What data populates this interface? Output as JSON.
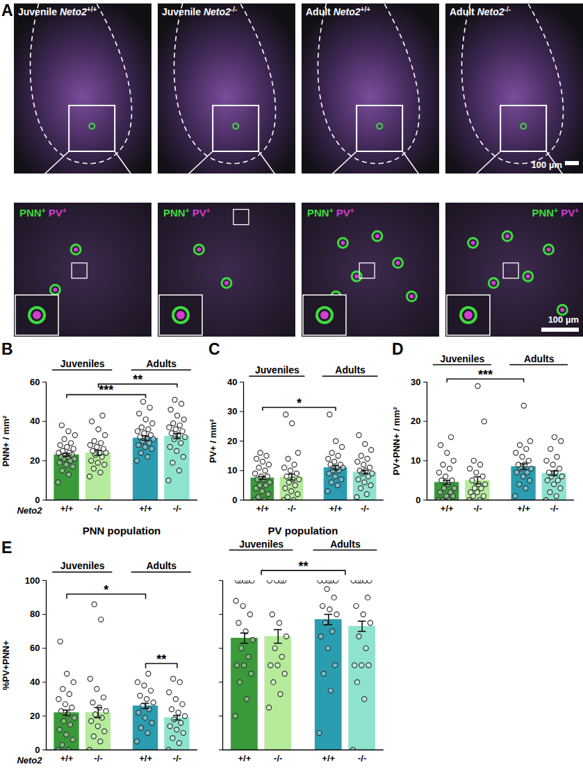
{
  "panel_a": {
    "panel": "A",
    "images": [
      {
        "stage": "Juvenile",
        "gene": "Neto2",
        "genotype": "+/+"
      },
      {
        "stage": "Juvenile",
        "gene": "Neto2",
        "genotype": "-/-"
      },
      {
        "stage": "Adult",
        "gene": "Neto2",
        "genotype": "+/+"
      },
      {
        "stage": "Adult",
        "gene": "Neto2",
        "genotype": "-/-"
      }
    ],
    "stains": [
      {
        "name": "PNN",
        "sign": "+",
        "color": "#3ddc3d"
      },
      {
        "name": "PV",
        "sign": "+",
        "color": "#d23cd2"
      }
    ],
    "scale_bar": "100 µm"
  },
  "chart_data": [
    {
      "panel": "B",
      "type": "bar",
      "ylabel": "PNN+ / mm²",
      "row_label": "Neto2",
      "categories": [
        "+/+",
        "-/-",
        "+/+",
        "-/-"
      ],
      "groups": [
        {
          "label": "Juveniles",
          "members": [
            0,
            1
          ]
        },
        {
          "label": "Adults",
          "members": [
            2,
            3
          ]
        }
      ],
      "values": [
        23,
        24,
        31.5,
        32.5
      ],
      "errors": [
        0.7,
        1.2,
        1.1,
        1.3
      ],
      "points": [
        [
          9,
          13,
          15,
          17,
          18,
          19,
          20,
          21,
          21,
          22,
          22,
          23,
          23,
          24,
          24,
          25,
          26,
          27,
          28,
          29,
          31,
          33,
          35,
          38
        ],
        [
          12,
          14,
          16,
          18,
          19,
          20,
          22,
          23,
          24,
          24,
          25,
          26,
          27,
          28,
          29,
          30,
          33,
          36,
          40,
          43
        ],
        [
          20,
          22,
          24,
          26,
          27,
          28,
          29,
          30,
          31,
          31,
          32,
          33,
          34,
          35,
          36,
          37,
          39,
          41,
          44,
          47,
          50
        ],
        [
          10,
          15,
          19,
          22,
          25,
          27,
          29,
          31,
          32,
          33,
          34,
          35,
          36,
          37,
          38,
          39,
          41,
          43,
          46,
          49,
          51
        ]
      ],
      "colors": [
        "#3a9a3a",
        "#b5eb9b",
        "#2a9db0",
        "#8ee3cf"
      ],
      "ylim": [
        0,
        60
      ],
      "yticks": [
        0,
        20,
        40,
        60
      ],
      "comparisons": [
        {
          "between": [
            0,
            2
          ],
          "label": "***"
        },
        {
          "between": [
            1,
            3
          ],
          "label": "**"
        }
      ]
    },
    {
      "panel": "C",
      "type": "bar",
      "ylabel": "PV+ / mm²",
      "categories": [
        "+/+",
        "-/-",
        "+/+",
        "-/-"
      ],
      "groups": [
        {
          "label": "Juveniles",
          "members": [
            0,
            1
          ]
        },
        {
          "label": "Adults",
          "members": [
            2,
            3
          ]
        }
      ],
      "values": [
        7.5,
        7.8,
        11,
        9.5
      ],
      "errors": [
        0.5,
        1.0,
        0.7,
        0.6
      ],
      "points": [
        [
          0,
          0,
          1,
          2,
          3,
          4,
          5,
          5,
          6,
          7,
          7,
          8,
          8,
          9,
          10,
          11,
          12,
          13,
          14,
          15,
          16
        ],
        [
          0,
          0,
          1,
          2,
          3,
          4,
          5,
          6,
          7,
          7,
          8,
          9,
          10,
          11,
          12,
          14,
          16,
          26,
          29
        ],
        [
          3,
          5,
          6,
          7,
          8,
          9,
          10,
          10,
          11,
          11,
          12,
          12,
          13,
          14,
          15,
          16,
          18,
          20,
          29
        ],
        [
          1,
          2,
          4,
          5,
          6,
          7,
          8,
          9,
          9,
          10,
          10,
          11,
          12,
          13,
          14,
          15,
          17,
          19,
          22
        ]
      ],
      "colors": [
        "#3a9a3a",
        "#b5eb9b",
        "#2a9db0",
        "#8ee3cf"
      ],
      "ylim": [
        0,
        40
      ],
      "yticks": [
        0,
        10,
        20,
        30,
        40
      ],
      "comparisons": [
        {
          "between": [
            0,
            2
          ],
          "label": "*"
        }
      ]
    },
    {
      "panel": "D",
      "type": "bar",
      "ylabel": "PV+PNN+ / mm²",
      "categories": [
        "+/+",
        "-/-",
        "+/+",
        "-/-"
      ],
      "groups": [
        {
          "label": "Juveniles",
          "members": [
            0,
            1
          ]
        },
        {
          "label": "Adults",
          "members": [
            2,
            3
          ]
        }
      ],
      "values": [
        4.5,
        5,
        8.5,
        6.8
      ],
      "errors": [
        0.5,
        0.9,
        0.7,
        0.6
      ],
      "points": [
        [
          0,
          0,
          0,
          1,
          1,
          2,
          2,
          3,
          3,
          4,
          5,
          5,
          6,
          7,
          8,
          9,
          10,
          12,
          14,
          16
        ],
        [
          0,
          0,
          1,
          1,
          2,
          2,
          3,
          3,
          4,
          4,
          5,
          6,
          7,
          8,
          9,
          10,
          20,
          29
        ],
        [
          1,
          3,
          4,
          5,
          6,
          7,
          7,
          8,
          8,
          9,
          9,
          10,
          11,
          12,
          13,
          14,
          15,
          24
        ],
        [
          0,
          1,
          2,
          3,
          4,
          5,
          5,
          6,
          6,
          7,
          7,
          8,
          9,
          10,
          11,
          13,
          15,
          16
        ]
      ],
      "colors": [
        "#3a9a3a",
        "#b5eb9b",
        "#2a9db0",
        "#8ee3cf"
      ],
      "ylim": [
        0,
        30
      ],
      "yticks": [
        0,
        10,
        20,
        30
      ],
      "comparisons": [
        {
          "between": [
            0,
            2
          ],
          "label": "***"
        }
      ]
    },
    {
      "panel": "E",
      "type": "bar",
      "title": "PNN population",
      "ylabel": "%PV+PNN+",
      "row_label": "Neto2",
      "categories": [
        "+/+",
        "-/-",
        "+/+",
        "-/-"
      ],
      "groups": [
        {
          "label": "Juveniles",
          "members": [
            0,
            1
          ]
        },
        {
          "label": "Adults",
          "members": [
            2,
            3
          ]
        }
      ],
      "values": [
        22,
        22,
        26,
        19
      ],
      "errors": [
        1.5,
        3,
        1.5,
        1.3
      ],
      "points": [
        [
          0,
          0,
          3,
          6,
          9,
          12,
          15,
          17,
          19,
          21,
          23,
          25,
          27,
          30,
          33,
          36,
          40,
          45,
          64
        ],
        [
          0,
          5,
          8,
          11,
          14,
          17,
          19,
          21,
          23,
          25,
          28,
          31,
          36,
          42,
          77,
          86
        ],
        [
          5,
          10,
          13,
          16,
          19,
          22,
          24,
          26,
          28,
          30,
          32,
          35,
          38,
          40,
          45
        ],
        [
          0,
          4,
          7,
          10,
          12,
          14,
          16,
          18,
          20,
          22,
          24,
          27,
          30,
          34,
          40,
          42
        ]
      ],
      "colors": [
        "#3a9a3a",
        "#b5eb9b",
        "#2a9db0",
        "#8ee3cf"
      ],
      "ylim": [
        0,
        100
      ],
      "yticks": [
        0,
        20,
        40,
        60,
        80,
        100
      ],
      "comparisons": [
        {
          "between": [
            0,
            2
          ],
          "label": "*"
        },
        {
          "between": [
            2,
            3
          ],
          "label": "**"
        }
      ]
    },
    {
      "type": "bar",
      "title": "PV population",
      "tick_labels": "x",
      "categories": [
        "+/+",
        "-/-",
        "+/+",
        "-/-"
      ],
      "groups": [
        {
          "label": "Juveniles",
          "members": [
            0,
            1
          ]
        },
        {
          "label": "Adults",
          "members": [
            2,
            3
          ]
        }
      ],
      "values": [
        66,
        67,
        77,
        73
      ],
      "errors": [
        3,
        4,
        3,
        3
      ],
      "points": [
        [
          20,
          30,
          40,
          45,
          50,
          50,
          55,
          60,
          65,
          70,
          75,
          80,
          85,
          88,
          100,
          100,
          100,
          100,
          100
        ],
        [
          25,
          33,
          40,
          45,
          50,
          50,
          55,
          60,
          67,
          75,
          80,
          100,
          100,
          100,
          100
        ],
        [
          10,
          35,
          45,
          50,
          60,
          67,
          70,
          75,
          80,
          83,
          85,
          90,
          95,
          100,
          100,
          100,
          100,
          100
        ],
        [
          0,
          30,
          40,
          50,
          50,
          50,
          60,
          67,
          75,
          80,
          85,
          90,
          100,
          100,
          100,
          100,
          100
        ]
      ],
      "colors": [
        "#3a9a3a",
        "#b5eb9b",
        "#2a9db0",
        "#8ee3cf"
      ],
      "ylim": [
        0,
        100
      ],
      "yticks": [
        0,
        20,
        40,
        60,
        80,
        100
      ],
      "comparisons": [
        {
          "between_groups": [
            0,
            1
          ],
          "label": "**"
        }
      ]
    }
  ]
}
